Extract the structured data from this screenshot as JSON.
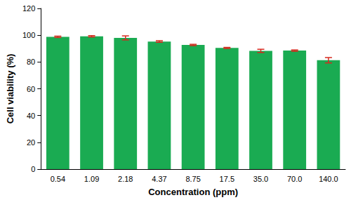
{
  "chart_data": {
    "type": "bar",
    "x_label": "Concentration (ppm)",
    "y_label": "Cell viability (%)",
    "categories": [
      "0.54",
      "1.09",
      "2.18",
      "4.37",
      "8.75",
      "17.5",
      "35.0",
      "70.0",
      "140.0"
    ],
    "values": [
      98.8,
      99.2,
      98.0,
      95.3,
      92.7,
      90.5,
      88.3,
      88.5,
      81.3
    ],
    "errors": [
      0.5,
      0.5,
      1.5,
      0.6,
      0.5,
      0.4,
      1.2,
      0.5,
      2.0
    ],
    "color": "#1aab52",
    "ylim": [
      0,
      120
    ],
    "yticks": [
      0,
      20,
      40,
      60,
      80,
      100,
      120
    ],
    "grid": false
  }
}
